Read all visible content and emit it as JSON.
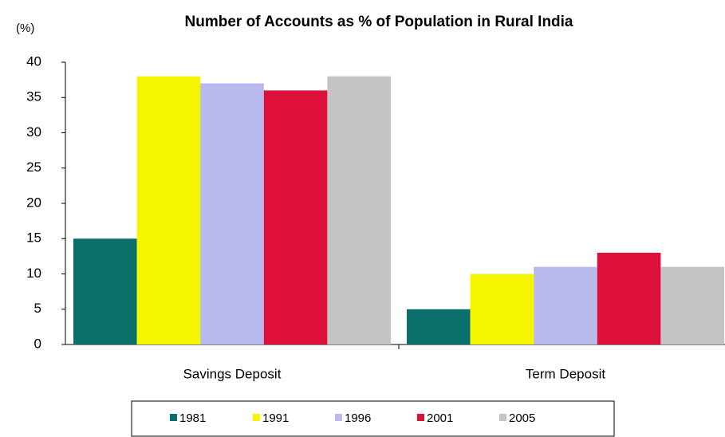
{
  "chart_data": {
    "type": "bar",
    "title": "Number of  Accounts as % of Population in Rural India",
    "y_label": "(%)",
    "categories": [
      "Savings Deposit",
      "Term Deposit"
    ],
    "series": [
      {
        "name": "1981",
        "color": "#0a6e6a",
        "values": [
          15,
          5
        ]
      },
      {
        "name": "1991",
        "color": "#f5f500",
        "values": [
          38,
          10
        ]
      },
      {
        "name": "1996",
        "color": "#b9b9ee",
        "values": [
          37,
          11
        ]
      },
      {
        "name": "2001",
        "color": "#dc1038",
        "values": [
          36,
          13
        ]
      },
      {
        "name": "2005",
        "color": "#c4c4c4",
        "values": [
          38,
          11
        ]
      }
    ],
    "ylim": [
      0,
      40
    ],
    "yticks": [
      0,
      5,
      10,
      15,
      20,
      25,
      30,
      35,
      40
    ],
    "legend": "bottom"
  }
}
